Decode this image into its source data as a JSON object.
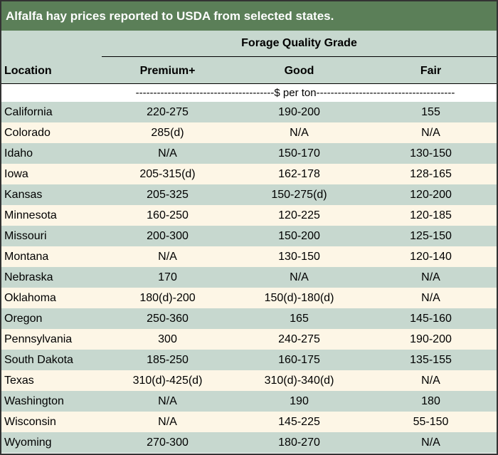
{
  "title": "Alfalfa hay prices reported to USDA from selected states.",
  "group_header": "Forage Quality Grade",
  "columns": {
    "location": "Location",
    "premium": "Premium+",
    "good": "Good",
    "fair": "Fair"
  },
  "unit_row": "---------------------------------------$ per ton---------------------------------------",
  "rows": [
    {
      "location": "California",
      "premium": "220-275",
      "good": "190-200",
      "fair": "155"
    },
    {
      "location": "Colorado",
      "premium": "285(d)",
      "good": "N/A",
      "fair": "N/A"
    },
    {
      "location": "Idaho",
      "premium": "N/A",
      "good": "150-170",
      "fair": "130-150"
    },
    {
      "location": "Iowa",
      "premium": "205-315(d)",
      "good": "162-178",
      "fair": "128-165"
    },
    {
      "location": "Kansas",
      "premium": "205-325",
      "good": "150-275(d)",
      "fair": "120-200"
    },
    {
      "location": "Minnesota",
      "premium": "160-250",
      "good": "120-225",
      "fair": "120-185"
    },
    {
      "location": "Missouri",
      "premium": "200-300",
      "good": "150-200",
      "fair": "125-150"
    },
    {
      "location": "Montana",
      "premium": "N/A",
      "good": "130-150",
      "fair": "120-140"
    },
    {
      "location": "Nebraska",
      "premium": "170",
      "good": "N/A",
      "fair": "N/A"
    },
    {
      "location": "Oklahoma",
      "premium": "180(d)-200",
      "good": "150(d)-180(d)",
      "fair": "N/A"
    },
    {
      "location": "Oregon",
      "premium": "250-360",
      "good": "165",
      "fair": "145-160"
    },
    {
      "location": "Pennsylvania",
      "premium": "300",
      "good": "240-275",
      "fair": "190-200"
    },
    {
      "location": "South Dakota",
      "premium": "185-250",
      "good": "160-175",
      "fair": "135-155"
    },
    {
      "location": "Texas",
      "premium": "310(d)-425(d)",
      "good": "310(d)-340(d)",
      "fair": "N/A"
    },
    {
      "location": "Washington",
      "premium": "N/A",
      "good": "190",
      "fair": "180"
    },
    {
      "location": "Wisconsin",
      "premium": "N/A",
      "good": "145-225",
      "fair": "55-150"
    },
    {
      "location": "Wyoming",
      "premium": "270-300",
      "good": "180-270",
      "fair": "N/A"
    }
  ],
  "colors": {
    "title_bar": "#5b7f58",
    "band_green": "#c7d8cf",
    "band_cream": "#fdf6e6"
  }
}
